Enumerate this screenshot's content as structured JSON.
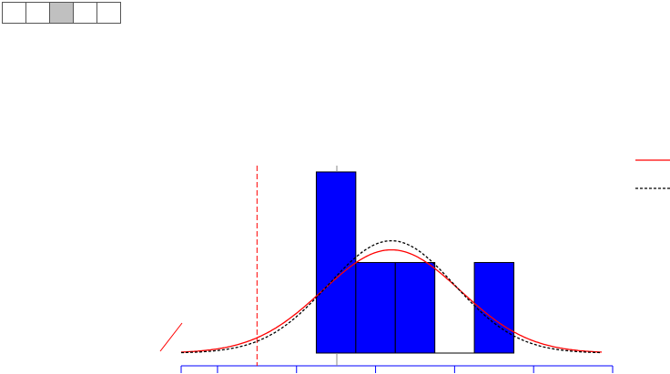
{
  "chart_data": {
    "type": "histogram",
    "bins": [
      1.25,
      1.75,
      2.25,
      2.75,
      3.25,
      3.75
    ],
    "values": [
      2,
      1,
      1,
      0,
      1
    ],
    "color": "#0000ff",
    "xlim": [
      -0.46,
      5
    ],
    "xticks": [
      0,
      1,
      2,
      3,
      4,
      5
    ],
    "ylim": [
      0,
      2.1
    ],
    "reference_line": 0.5,
    "curves": [
      {
        "color": "#ff0000",
        "dashed": false,
        "mean": 2.2,
        "sd": 0.87,
        "peak": 1.14
      },
      {
        "color": "#000000",
        "dashed": true,
        "mean": 2.2,
        "sd": 0.8,
        "peak": 1.24
      }
    ],
    "legend": "upper right"
  }
}
